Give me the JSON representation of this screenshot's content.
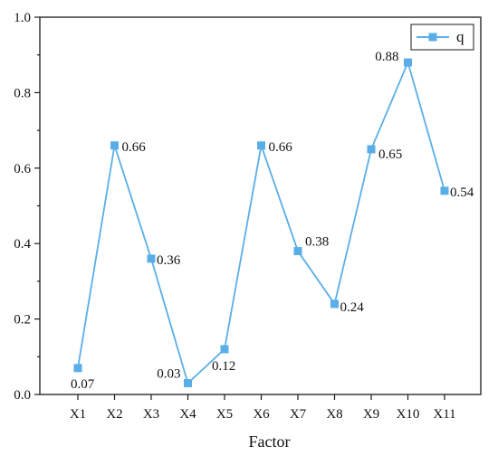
{
  "chart_data": {
    "type": "line",
    "categories": [
      "X1",
      "X2",
      "X3",
      "X4",
      "X5",
      "X6",
      "X7",
      "X8",
      "X9",
      "X10",
      "X11"
    ],
    "series": [
      {
        "name": "q",
        "values": [
          0.07,
          0.66,
          0.36,
          0.03,
          0.12,
          0.66,
          0.38,
          0.24,
          0.65,
          0.88,
          0.54
        ],
        "data_labels": [
          "0.07",
          "0.66",
          "0.36",
          "0.03",
          "0.12",
          "0.66",
          "0.38",
          "0.24",
          "0.65",
          "0.88",
          "0.54"
        ],
        "color": "#5aaee8",
        "marker": "square"
      }
    ],
    "xlabel": "Factor",
    "ylabel": "",
    "ylim": [
      0.0,
      1.0
    ],
    "yticks": [
      "0.0",
      "0.2",
      "0.4",
      "0.6",
      "0.8",
      "1.0"
    ],
    "grid": false,
    "legend": "top-right"
  }
}
